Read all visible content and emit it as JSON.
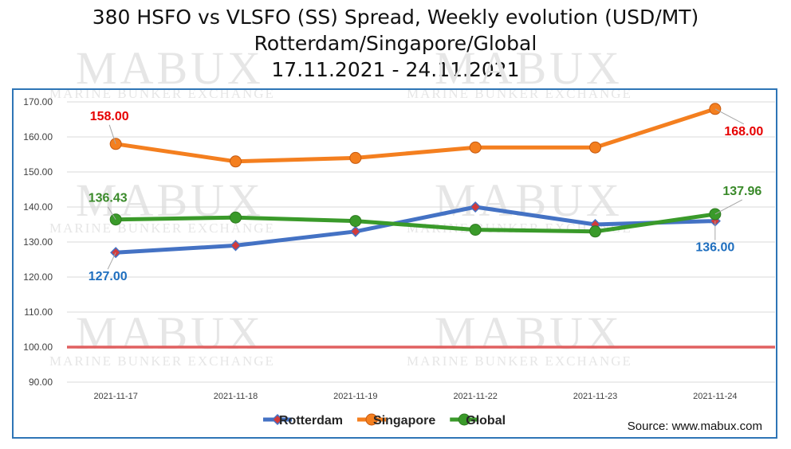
{
  "title_lines": [
    "380 HSFO vs VLSFO (SS) Spread, Weekly evolution (USD/MT)",
    "Rotterdam/Singapore/Global",
    "17.11.2021 - 24.11.2021"
  ],
  "watermark": {
    "big": "MABUX",
    "small": "MARINE BUNKER EXCHANGE"
  },
  "source_text": "Source: www.mabux.com",
  "colors": {
    "rotterdam": "#4472c4",
    "singapore": "#f47f1f",
    "global": "#3a9a2a",
    "baseline": "#e06060",
    "frame": "#2e75b6",
    "marker_rotterdam": "#d23b3b"
  },
  "chart_data": {
    "type": "line",
    "categories": [
      "2021-11-17",
      "2021-11-18",
      "2021-11-19",
      "2021-11-22",
      "2021-11-23",
      "2021-11-24"
    ],
    "series": [
      {
        "name": "Rotterdam",
        "values": [
          127,
          129,
          133,
          140,
          135,
          136
        ]
      },
      {
        "name": "Singapore",
        "values": [
          158,
          153,
          154,
          157,
          157,
          168
        ]
      },
      {
        "name": "Global",
        "values": [
          136.43,
          137,
          136,
          133.5,
          133,
          137.96
        ]
      }
    ],
    "ylim": [
      90,
      170
    ],
    "yticks": [
      "90.00",
      "100.00",
      "110.00",
      "120.00",
      "130.00",
      "140.00",
      "150.00",
      "160.00",
      "170.00"
    ],
    "reference_line": 100,
    "data_labels": [
      {
        "series": "Singapore",
        "index": 0,
        "text": "158.00",
        "color": "#e60000"
      },
      {
        "series": "Singapore",
        "index": 5,
        "text": "168.00",
        "color": "#e60000"
      },
      {
        "series": "Global",
        "index": 0,
        "text": "136.43",
        "color": "#3a8a2a"
      },
      {
        "series": "Global",
        "index": 5,
        "text": "137.96",
        "color": "#3a8a2a"
      },
      {
        "series": "Rotterdam",
        "index": 0,
        "text": "127.00",
        "color": "#1f6fbf"
      },
      {
        "series": "Rotterdam",
        "index": 5,
        "text": "136.00",
        "color": "#1f6fbf"
      }
    ],
    "legend": [
      "Rotterdam",
      "Singapore",
      "Global"
    ],
    "legend_position": "bottom",
    "grid": true
  }
}
